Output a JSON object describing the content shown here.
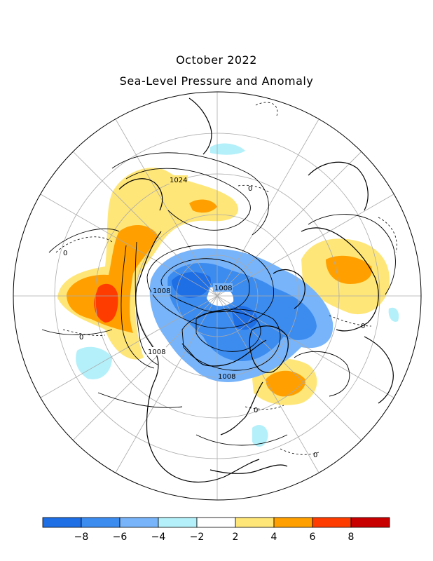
{
  "title": "October 2022",
  "subtitle": "Sea-Level Pressure and Anomaly",
  "contour_labels": [
    {
      "id": "l1024",
      "text": "1024"
    },
    {
      "id": "l1008a",
      "text": "1008"
    },
    {
      "id": "l1008b",
      "text": "1008"
    },
    {
      "id": "l1008c",
      "text": "1008"
    },
    {
      "id": "l1008d",
      "text": "1008"
    },
    {
      "id": "l0a",
      "text": "0"
    },
    {
      "id": "l0b",
      "text": "0"
    },
    {
      "id": "l0c",
      "text": "0"
    },
    {
      "id": "l0d",
      "text": "0"
    },
    {
      "id": "l0e",
      "text": "0"
    },
    {
      "id": "l0f",
      "text": "0"
    }
  ],
  "colorbar": {
    "colors": [
      "#1e6ee6",
      "#3c8cf0",
      "#78b4fa",
      "#b4f0fa",
      "#ffffff",
      "#ffe678",
      "#ffa000",
      "#ff3c00",
      "#c80000"
    ],
    "tick_labels": [
      "-8",
      "-6",
      "-4",
      "-2",
      "2",
      "4",
      "6",
      "8"
    ]
  },
  "anomaly_colors": {
    "blue_dark": "#1e6ee6",
    "blue_mid": "#3c8cf0",
    "blue_light": "#78b4fa",
    "cyan": "#b4f0fa",
    "yellow": "#ffe678",
    "orange": "#ffa000",
    "red": "#ff3c00"
  }
}
